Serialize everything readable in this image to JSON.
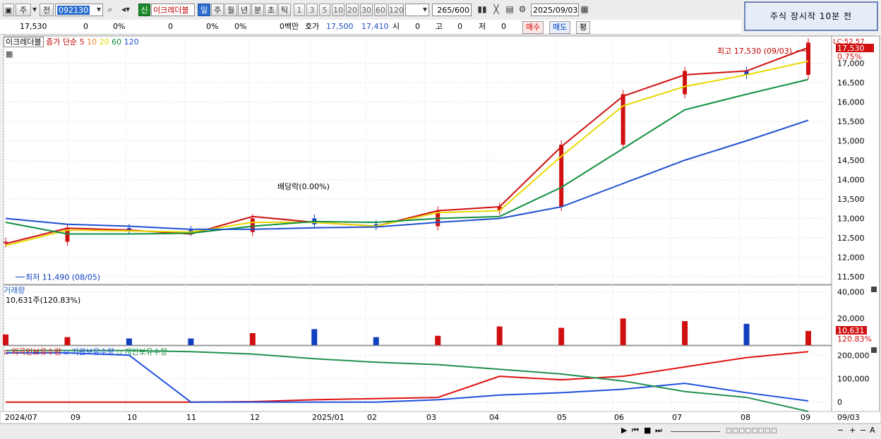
{
  "toolbar": {
    "period_main": "주",
    "prev": "전",
    "code": "092130",
    "sin": "신",
    "stock_name": "이크레더블",
    "periods": [
      "일",
      "주",
      "월",
      "년",
      "분",
      "초",
      "틱"
    ],
    "active_period": "일",
    "nums": [
      "1",
      "3",
      "5",
      "10",
      "20",
      "30",
      "60",
      "120"
    ],
    "count": "265",
    "count_total": "/600",
    "date": "2025/09/03"
  },
  "notice": "주식 장시작 10분 전",
  "quote": {
    "price": "17,530",
    "change": "0",
    "change_pct": "0%",
    "volume": "0",
    "vol_pct": "0%",
    "pct2": "0%",
    "amount": "0백만",
    "hoga_label": "호가",
    "bid": "17,500",
    "ask": "17,410",
    "open_label": "시",
    "open": "0",
    "high_label": "고",
    "high": "0",
    "low_label": "저",
    "low": "0",
    "buy": "매수",
    "sell": "매도",
    "eval": "평"
  },
  "price_panel": {
    "name_tag": "이크레더블",
    "ma_label": "종가 단순",
    "ma_periods": [
      "5",
      "10",
      "20",
      "60",
      "120"
    ],
    "ma_colors": [
      "#d01010",
      "#f08020",
      "#e8d800",
      "#109040",
      "#2050d0"
    ],
    "y_ticks": [
      "17,000",
      "16,500",
      "16,000",
      "15,500",
      "15,000",
      "14,500",
      "14,000",
      "13,500",
      "13,000",
      "12,500",
      "12,000",
      "11,500"
    ],
    "last_price_tag": "17,530",
    "last_pct_tag": "0.75%",
    "top_label": "LC:52.57",
    "max_annot": "최고 17,530 (09/03)",
    "min_annot": "최저 11,490 (08/05)",
    "div_annot": "배당락(0.00%)"
  },
  "volume_panel": {
    "title": "거래량",
    "info": "10,631주(120.83%)",
    "y_ticks": [
      "40,000",
      "20,000"
    ],
    "last_tag": "10,631",
    "last_pct": "120.83%"
  },
  "holdings_panel": {
    "series_names": [
      "외국인보유수량",
      "기관보유수량",
      "개인보유수량"
    ],
    "colors": [
      "#e01010",
      "#2050e0",
      "#209050"
    ],
    "y_ticks": [
      "200,000",
      "100,000",
      "0"
    ]
  },
  "x_axis": {
    "labels": [
      "2024/07",
      "09",
      "10",
      "11",
      "12",
      "2025/01",
      "02",
      "03",
      "04",
      "05",
      "06",
      "07",
      "08",
      "09"
    ],
    "cursor_date": "09/03"
  },
  "chart_data": [
    {
      "type": "line",
      "title": "",
      "x": [
        "2024/07",
        "2024/09",
        "2024/10",
        "2024/11",
        "2024/12",
        "2025/01",
        "2025/02",
        "2025/03",
        "2025/04",
        "2025/05",
        "2025/06",
        "2025/07",
        "2025/08",
        "2025/09"
      ],
      "series": [
        {
          "name": "종가",
          "values": [
            12400,
            12750,
            12700,
            12650,
            13000,
            12850,
            12800,
            13200,
            13300,
            14900,
            16200,
            16800,
            16700,
            17530
          ]
        },
        {
          "name": "5",
          "values": [
            12350,
            12750,
            12700,
            12600,
            13050,
            12900,
            12800,
            13200,
            13300,
            14850,
            16150,
            16700,
            16800,
            17400
          ]
        },
        {
          "name": "20",
          "values": [
            12300,
            12700,
            12680,
            12650,
            12900,
            12900,
            12800,
            13150,
            13200,
            14600,
            15900,
            16400,
            16700,
            17050
          ]
        },
        {
          "name": "60",
          "values": [
            12900,
            12600,
            12600,
            12620,
            12800,
            12920,
            12900,
            13000,
            13050,
            13800,
            14800,
            15800,
            16200,
            16580
          ]
        },
        {
          "name": "120",
          "values": [
            13000,
            12850,
            12800,
            12720,
            12720,
            12760,
            12780,
            12900,
            13000,
            13300,
            13900,
            14500,
            15000,
            15530
          ]
        }
      ],
      "ylim": [
        11300,
        17700
      ]
    },
    {
      "type": "bar",
      "title": "거래량",
      "categories": [
        "2024/07",
        "2024/09",
        "2024/10",
        "2024/11",
        "2024/12",
        "2025/01",
        "2025/02",
        "2025/03",
        "2025/04",
        "2025/05",
        "2025/06",
        "2025/07",
        "2025/08",
        "2025/09"
      ],
      "values": [
        8000,
        6000,
        5000,
        5000,
        9000,
        12000,
        6000,
        7000,
        14000,
        13000,
        20000,
        18000,
        16000,
        10631
      ],
      "ylim": [
        0,
        45000
      ]
    },
    {
      "type": "line",
      "title": "",
      "x": [
        "2024/07",
        "2024/09",
        "2024/10",
        "2024/11",
        "2024/12",
        "2025/01",
        "2025/02",
        "2025/03",
        "2025/04",
        "2025/05",
        "2025/06",
        "2025/07",
        "2025/08",
        "2025/09"
      ],
      "series": [
        {
          "name": "외국인보유수량",
          "values": [
            0,
            0,
            0,
            0,
            2000,
            10000,
            15000,
            20000,
            110000,
            95000,
            110000,
            150000,
            190000,
            215000
          ]
        },
        {
          "name": "기관보유수량",
          "values": [
            210000,
            210000,
            200000,
            0,
            0,
            0,
            0,
            10000,
            30000,
            40000,
            55000,
            80000,
            40000,
            5000
          ]
        },
        {
          "name": "개인보유수량",
          "values": [
            220000,
            220000,
            220000,
            215000,
            205000,
            185000,
            170000,
            160000,
            140000,
            120000,
            90000,
            45000,
            20000,
            -40000
          ]
        }
      ],
      "ylim": [
        -40000,
        240000
      ]
    }
  ]
}
